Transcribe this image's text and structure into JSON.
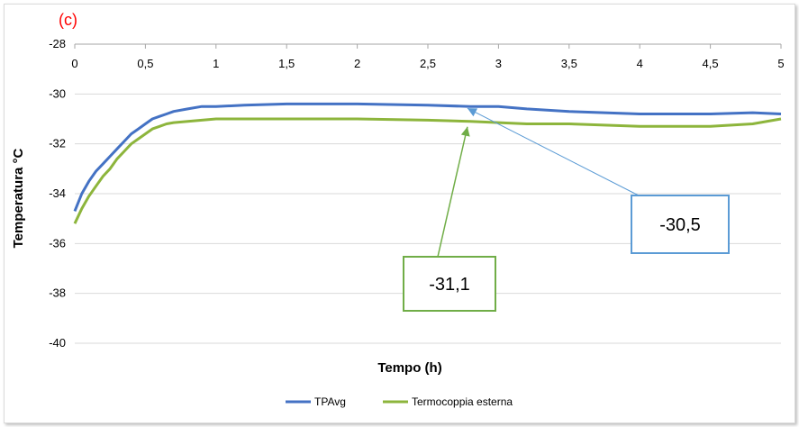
{
  "chart_data": {
    "type": "line",
    "panel_label": "(c)",
    "title": "",
    "xlabel": "Tempo (h)",
    "ylabel": "Temperatura °C",
    "xlim": [
      0,
      5
    ],
    "ylim": [
      -40,
      -28
    ],
    "x_ticks": [
      "0",
      "0,5",
      "1",
      "1,5",
      "2",
      "2,5",
      "3",
      "3,5",
      "4",
      "4,5",
      "5"
    ],
    "y_ticks": [
      "-28",
      "-30",
      "-32",
      "-34",
      "-36",
      "-38",
      "-40"
    ],
    "x_axis_position": "top",
    "grid": "horizontal",
    "legend_position": "bottom",
    "series": [
      {
        "name": "TPAvg",
        "color": "#4472c4",
        "x": [
          0,
          0.05,
          0.1,
          0.15,
          0.2,
          0.25,
          0.3,
          0.35,
          0.4,
          0.45,
          0.5,
          0.55,
          0.6,
          0.65,
          0.7,
          0.8,
          0.9,
          1.0,
          1.2,
          1.5,
          1.8,
          2.0,
          2.5,
          2.8,
          3.0,
          3.2,
          3.5,
          4.0,
          4.5,
          4.8,
          5.0
        ],
        "y": [
          -34.7,
          -34.0,
          -33.5,
          -33.1,
          -32.8,
          -32.5,
          -32.2,
          -31.9,
          -31.6,
          -31.4,
          -31.2,
          -31.0,
          -30.9,
          -30.8,
          -30.7,
          -30.6,
          -30.5,
          -30.5,
          -30.45,
          -30.4,
          -30.4,
          -30.4,
          -30.45,
          -30.5,
          -30.5,
          -30.6,
          -30.7,
          -30.8,
          -30.8,
          -30.75,
          -30.8
        ]
      },
      {
        "name": "Termocoppia esterna",
        "color": "#8db53c",
        "x": [
          0,
          0.05,
          0.1,
          0.15,
          0.2,
          0.25,
          0.3,
          0.35,
          0.4,
          0.45,
          0.5,
          0.55,
          0.6,
          0.65,
          0.7,
          0.8,
          0.9,
          1.0,
          1.2,
          1.5,
          1.8,
          2.0,
          2.5,
          2.8,
          3.0,
          3.2,
          3.5,
          4.0,
          4.5,
          4.8,
          5.0
        ],
        "y": [
          -35.2,
          -34.6,
          -34.1,
          -33.7,
          -33.3,
          -33.0,
          -32.6,
          -32.3,
          -32.0,
          -31.8,
          -31.6,
          -31.4,
          -31.3,
          -31.2,
          -31.15,
          -31.1,
          -31.05,
          -31.0,
          -31.0,
          -31.0,
          -31.0,
          -31.0,
          -31.05,
          -31.1,
          -31.15,
          -31.2,
          -31.2,
          -31.3,
          -31.3,
          -31.2,
          -31.0
        ]
      }
    ],
    "annotations": [
      {
        "text": "-30,5",
        "series": "TPAvg",
        "x": 2.78,
        "y": -30.5,
        "color": "#5b9bd5"
      },
      {
        "text": "-31,1",
        "series": "Termocoppia esterna",
        "x": 2.78,
        "y": -31.1,
        "color": "#70ad47"
      }
    ]
  }
}
